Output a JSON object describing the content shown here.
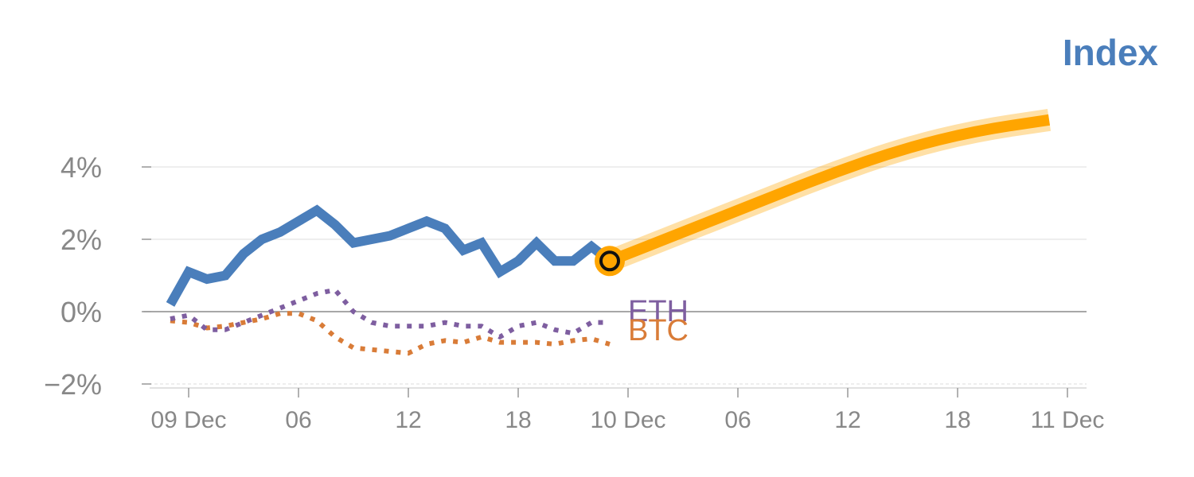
{
  "chart_data": {
    "type": "line",
    "title": "Index",
    "xlabel": "",
    "ylabel": "",
    "y_unit": "%",
    "ylim": [
      -2.1,
      5.8
    ],
    "xlim": [
      "2023-12-09T-02:00",
      "2023-12-11T01:00"
    ],
    "y_ticks": [
      {
        "value": 4,
        "label": "4%"
      },
      {
        "value": 2,
        "label": "2%"
      },
      {
        "value": 0,
        "label": "0%"
      },
      {
        "value": -2,
        "label": "−2%"
      }
    ],
    "x_ticks": [
      {
        "hour": 0,
        "label": "09 Dec"
      },
      {
        "hour": 6,
        "label": "06"
      },
      {
        "hour": 12,
        "label": "12"
      },
      {
        "hour": 18,
        "label": "18"
      },
      {
        "hour": 24,
        "label": "10 Dec"
      },
      {
        "hour": 30,
        "label": "06"
      },
      {
        "hour": 36,
        "label": "12"
      },
      {
        "hour": 42,
        "label": "18"
      },
      {
        "hour": 48,
        "label": "11 Dec"
      }
    ],
    "grid": true,
    "series": [
      {
        "name": "Index",
        "color": "#4a7ebb",
        "style": "solid",
        "x": [
          -1,
          0,
          1,
          2,
          3,
          4,
          5,
          6,
          7,
          8,
          9,
          10,
          11,
          12,
          13,
          14,
          15,
          16,
          17,
          18,
          19,
          20,
          21,
          22,
          23
        ],
        "y": [
          0.2,
          1.1,
          0.9,
          1.0,
          1.6,
          2.0,
          2.2,
          2.5,
          2.8,
          2.4,
          1.9,
          2.0,
          2.1,
          2.3,
          2.5,
          2.3,
          1.7,
          1.9,
          1.1,
          1.4,
          1.9,
          1.4,
          1.4,
          1.8,
          1.4
        ]
      },
      {
        "name": "ETH",
        "color": "#7e5ea0",
        "style": "dotted",
        "x": [
          -1,
          0,
          1,
          2,
          3,
          4,
          5,
          6,
          7,
          8,
          9,
          10,
          11,
          12,
          13,
          14,
          15,
          16,
          17,
          18,
          19,
          20,
          21,
          22,
          23
        ],
        "y": [
          -0.2,
          -0.1,
          -0.5,
          -0.5,
          -0.3,
          -0.1,
          0.1,
          0.3,
          0.5,
          0.6,
          0.0,
          -0.3,
          -0.4,
          -0.4,
          -0.4,
          -0.3,
          -0.4,
          -0.4,
          -0.7,
          -0.4,
          -0.3,
          -0.5,
          -0.6,
          -0.3,
          -0.3
        ]
      },
      {
        "name": "BTC",
        "color": "#d97c38",
        "style": "dotted",
        "x": [
          -1,
          0,
          1,
          2,
          3,
          4,
          5,
          6,
          7,
          8,
          9,
          10,
          11,
          12,
          13,
          14,
          15,
          16,
          17,
          18,
          19,
          20,
          21,
          22,
          23
        ],
        "y": [
          -0.25,
          -0.3,
          -0.45,
          -0.4,
          -0.3,
          -0.2,
          -0.05,
          -0.05,
          -0.25,
          -0.7,
          -1.0,
          -1.05,
          -1.1,
          -1.15,
          -0.9,
          -0.8,
          -0.85,
          -0.7,
          -0.85,
          -0.85,
          -0.85,
          -0.9,
          -0.8,
          -0.75,
          -0.9
        ]
      }
    ],
    "projection": {
      "color": "#ffa500",
      "x": [
        23,
        27,
        31,
        35,
        39,
        43,
        47
      ],
      "y": [
        1.4,
        2.2,
        3.0,
        3.8,
        4.5,
        5.0,
        5.3
      ]
    },
    "marker": {
      "x": 23,
      "y": 1.4
    },
    "series_labels": [
      {
        "name": "ETH",
        "color": "#7e5ea0"
      },
      {
        "name": "BTC",
        "color": "#d97c38"
      }
    ]
  }
}
